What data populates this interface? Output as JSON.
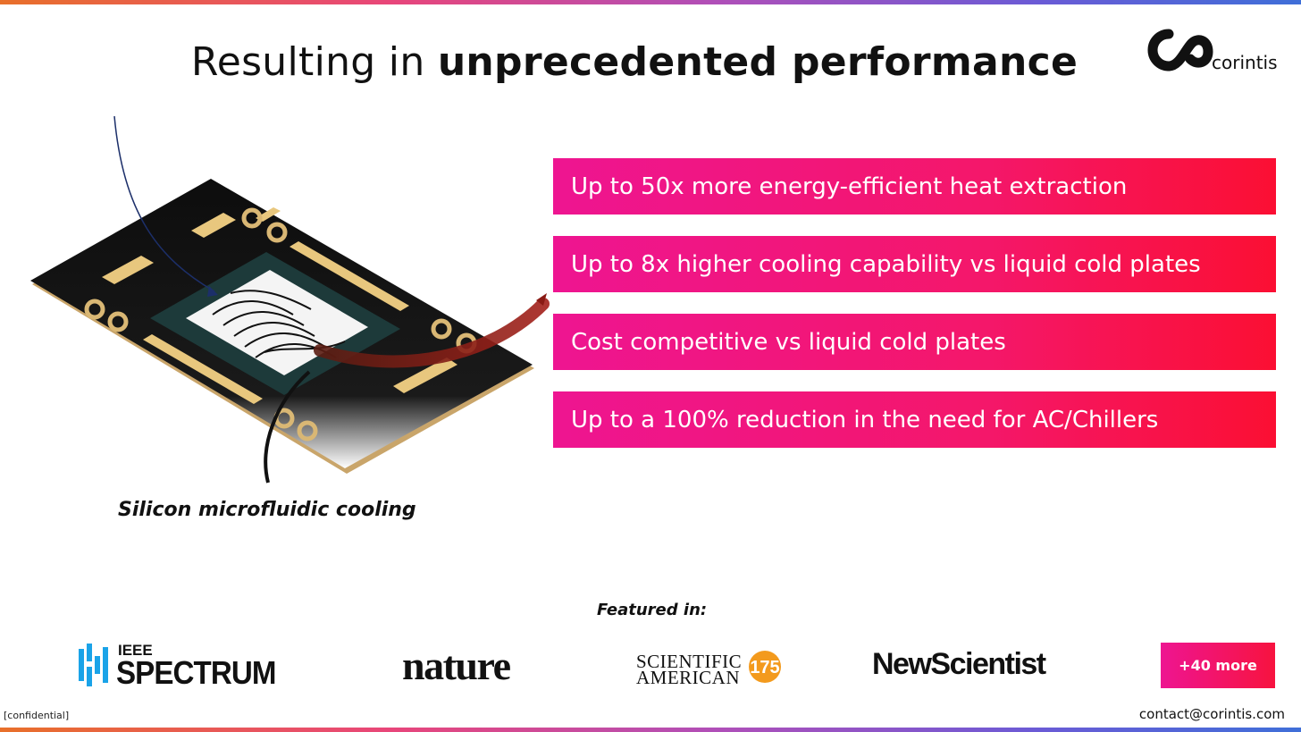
{
  "slide": {
    "title_light": "Resulting in",
    "title_bold": "unprecedented performance"
  },
  "logo": {
    "text": "corintis",
    "icon": "infinity-loop-logo"
  },
  "illustration": {
    "caption": "Silicon microfluidic cooling",
    "subject": "chip-package-with-microfluidic-channels"
  },
  "benefits": [
    "Up to 50x more energy-efficient heat extraction",
    "Up to 8x higher cooling capability vs liquid cold plates",
    "Cost competitive vs liquid cold plates",
    "Up to a 100% reduction in the need for AC/Chillers"
  ],
  "featured": {
    "label": "Featured in:",
    "ieee_top": "IEEE",
    "ieee_main": "SPECTRUM",
    "nature": "nature",
    "sciam_line1": "SCIENTIFIC",
    "sciam_line2": "AMERICAN",
    "sciam_badge": "175",
    "newscientist": "NewScientist",
    "more": "+40 more"
  },
  "footer": {
    "confidential": "[confidential]",
    "contact": "contact@corintis.com"
  },
  "colors": {
    "accent_pink": "#ee1591",
    "accent_red": "#fb0f33",
    "ieee_blue": "#1aa3e8",
    "sciam_orange": "#f39a1d"
  }
}
